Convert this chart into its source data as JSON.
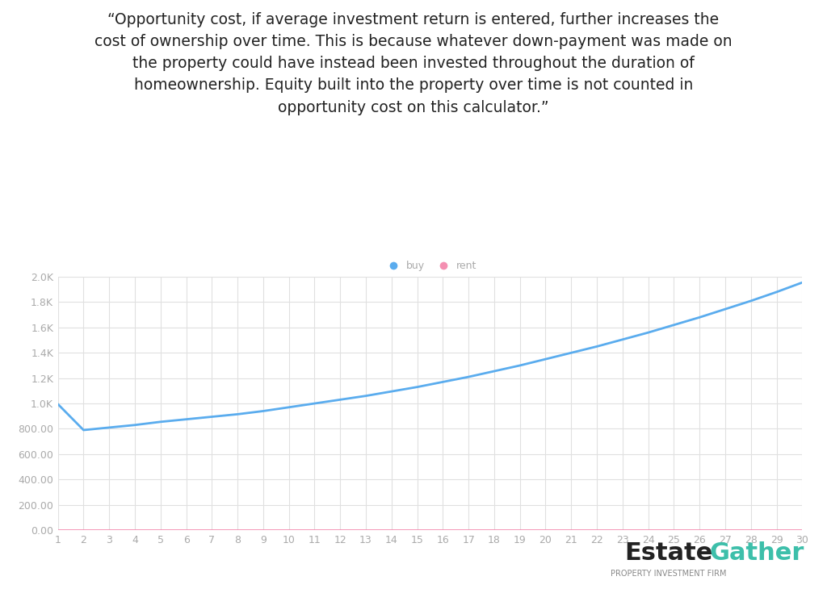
{
  "quote_text": "“Opportunity cost, if average investment return is entered, further increases the\ncost of ownership over time. This is because whatever down-payment was made on\nthe property could have instead been invested throughout the duration of\nhomeownership. Equity built into the property over time is not counted in\nopportunity cost on this calculator.”",
  "x_values": [
    1,
    2,
    3,
    4,
    5,
    6,
    7,
    8,
    9,
    10,
    11,
    12,
    13,
    14,
    15,
    16,
    17,
    18,
    19,
    20,
    21,
    22,
    23,
    24,
    25,
    26,
    27,
    28,
    29,
    30
  ],
  "buy_values": [
    995,
    790,
    810,
    830,
    855,
    875,
    895,
    915,
    940,
    970,
    1000,
    1030,
    1060,
    1095,
    1130,
    1170,
    1210,
    1255,
    1300,
    1350,
    1400,
    1450,
    1505,
    1560,
    1620,
    1680,
    1745,
    1810,
    1880,
    1955
  ],
  "rent_values": [
    0,
    0,
    0,
    0,
    0,
    0,
    0,
    0,
    0,
    0,
    0,
    0,
    0,
    0,
    0,
    0,
    0,
    0,
    0,
    0,
    0,
    0,
    0,
    0,
    0,
    0,
    0,
    0,
    0,
    0
  ],
  "buy_color": "#5AACEE",
  "rent_color": "#F48FB1",
  "background_color": "#FFFFFF",
  "grid_color": "#E0E0E0",
  "tick_label_color": "#AAAAAA",
  "ytick_labels": [
    "0.00",
    "200.00",
    "400.00",
    "600.00",
    "800.00",
    "1.0K",
    "1.2K",
    "1.4K",
    "1.6K",
    "1.8K",
    "2.0K"
  ],
  "ytick_values": [
    0,
    200,
    400,
    600,
    800,
    1000,
    1200,
    1400,
    1600,
    1800,
    2000
  ],
  "ylim": [
    0,
    2000
  ],
  "xlim": [
    1,
    30
  ],
  "xtick_values": [
    1,
    2,
    3,
    4,
    5,
    6,
    7,
    8,
    9,
    10,
    11,
    12,
    13,
    14,
    15,
    16,
    17,
    18,
    19,
    20,
    21,
    22,
    23,
    24,
    25,
    26,
    27,
    28,
    29,
    30
  ],
  "legend_buy_label": "buy",
  "legend_rent_label": "rent",
  "logo_estate": "Estate",
  "logo_gather": "Gather",
  "logo_subtitle": "PROPERTY INVESTMENT FIRM",
  "logo_estate_color": "#222222",
  "logo_gather_color": "#3DBFAA",
  "logo_subtitle_color": "#888888",
  "quote_fontsize": 13.5,
  "quote_text_color": "#222222",
  "axis_line_color": "#CCCCCC"
}
